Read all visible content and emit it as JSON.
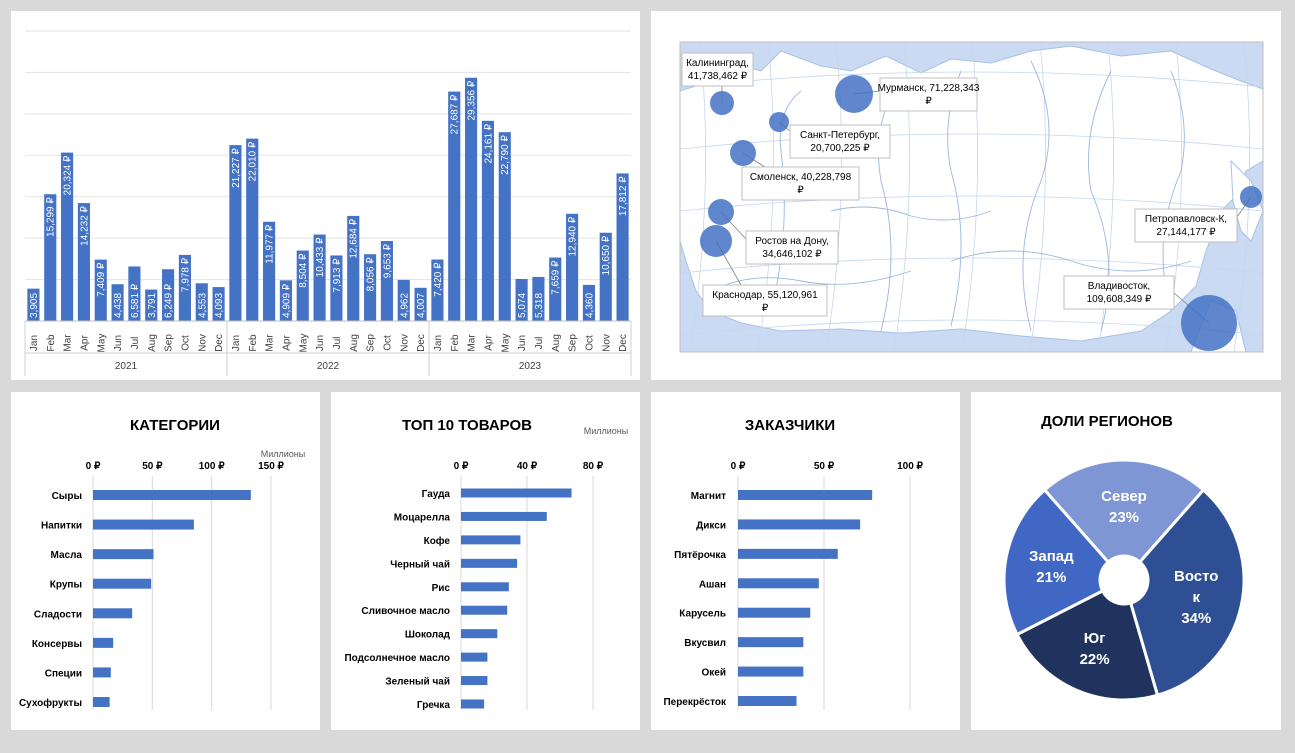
{
  "chart_data": [
    {
      "type": "bar",
      "title": "",
      "currency": "₽",
      "years": [
        "2021",
        "2022",
        "2023"
      ],
      "months": [
        "Jan",
        "Feb",
        "Mar",
        "Apr",
        "May",
        "Jun",
        "Jul",
        "Aug",
        "Sep",
        "Oct",
        "Nov",
        "Dec"
      ],
      "values": [
        3905,
        15299,
        20324,
        14232,
        7409,
        4438,
        6581,
        3791,
        6249,
        7978,
        4553,
        4093,
        21227,
        22010,
        11977,
        4909,
        8504,
        10433,
        7913,
        12684,
        8056,
        9653,
        4962,
        4007,
        7420,
        27687,
        29356,
        24161,
        22790,
        5074,
        5318,
        7659,
        12940,
        4360,
        10650,
        17812
      ],
      "labels": [
        "3,905",
        "15,299 ₽",
        "20,324 ₽",
        "14,232 ₽",
        "7,409 ₽",
        "4,438",
        "6,581 ₽",
        "3,791",
        "6,249 ₽",
        "7,978 ₽",
        "4,553",
        "4,093",
        "21,227 ₽",
        "22,010 ₽",
        "11,977 ₽",
        "4,909 ₽",
        "8,504 ₽",
        "10,433 ₽",
        "7,913 ₽",
        "12,684 ₽",
        "8,056 ₽",
        "9,653 ₽",
        "4,962",
        "4,007",
        "7,420 ₽",
        "27,687 ₽",
        "29,356 ₽",
        "24,161 ₽",
        "22,790 ₽",
        "5,074",
        "5,318",
        "7,659 ₽",
        "12,940 ₽",
        "4,360",
        "10,650 ₽",
        "17,812 ₽"
      ],
      "ylim": [
        0,
        35000
      ],
      "grid": true
    },
    {
      "type": "scatter",
      "subtype": "bubble-map",
      "points": [
        {
          "label": "Калининград, 41,738,462 ₽",
          "lines": [
            "Калининград,",
            "41,738,462 ₽"
          ],
          "value": 41738462
        },
        {
          "label": "Мурманск, 71,228,343 ₽",
          "lines": [
            "Мурманск, 71,228,343",
            "₽"
          ],
          "value": 71228343
        },
        {
          "label": "Санкт-Петербург, 20,700,225 ₽",
          "lines": [
            "Санкт-Петербург,",
            "20,700,225 ₽"
          ],
          "value": 20700225
        },
        {
          "label": "Смоленск, 40,228,798 ₽",
          "lines": [
            "Смоленск, 40,228,798",
            "₽"
          ],
          "value": 40228798
        },
        {
          "label": "Ростов на Дону, 34,646,102 ₽",
          "lines": [
            "Ростов на Дону,",
            "34,646,102 ₽"
          ],
          "value": 34646102
        },
        {
          "label": "Краснодар, 55,120,961 ₽",
          "lines": [
            "Краснодар, 55,120,961",
            "₽"
          ],
          "value": 55120961
        },
        {
          "label": "Петропавловск-К, 27,144,177 ₽",
          "lines": [
            "Петропавловск-К,",
            "27,144,177 ₽"
          ],
          "value": 27144177
        },
        {
          "label": "Владивосток, 109,608,349 ₽",
          "lines": [
            "Владивосток,",
            "109,608,349 ₽"
          ],
          "value": 109608349
        }
      ]
    },
    {
      "type": "bar",
      "orientation": "horizontal",
      "title": "КАТЕГОРИИ",
      "units_label": "Миллионы",
      "categories": [
        "Сыры",
        "Напитки",
        "Масла",
        "Крупы",
        "Сладости",
        "Консервы",
        "Специи",
        "Сухофрукты"
      ],
      "values": [
        133,
        85,
        51,
        49,
        33,
        17,
        15,
        14
      ],
      "xticks": [
        "0 ₽",
        "50 ₽",
        "100 ₽",
        "150 ₽"
      ],
      "xtick_values": [
        0,
        50,
        100,
        150
      ],
      "xlim": [
        0,
        150
      ],
      "grid": true
    },
    {
      "type": "bar",
      "orientation": "horizontal",
      "title": "ТОП 10 ТОВАРОВ",
      "units_label": "Миллионы",
      "categories": [
        "Гауда",
        "Моцарелла",
        "Кофе",
        "Черный чай",
        "Рис",
        "Сливочное масло",
        "Шоколад",
        "Подсолнечное масло",
        "Зеленый чай",
        "Гречка"
      ],
      "values": [
        67,
        52,
        36,
        34,
        29,
        28,
        22,
        16,
        16,
        14
      ],
      "xticks": [
        "0 ₽",
        "40 ₽",
        "80 ₽"
      ],
      "xtick_values": [
        0,
        40,
        80
      ],
      "xlim": [
        0,
        80
      ],
      "grid": true
    },
    {
      "type": "bar",
      "orientation": "horizontal",
      "title": "ЗАКАЗЧИКИ",
      "categories": [
        "Магнит",
        "Дикси",
        "Пятёрочка",
        "Ашан",
        "Карусель",
        "Вкусвил",
        "Окей",
        "Перекрёсток"
      ],
      "values": [
        78,
        71,
        58,
        47,
        42,
        38,
        38,
        34
      ],
      "xticks": [
        "0 ₽",
        "50 ₽",
        "100 ₽"
      ],
      "xtick_values": [
        0,
        50,
        100
      ],
      "xlim": [
        0,
        100
      ],
      "grid": true
    },
    {
      "type": "pie",
      "subtype": "doughnut",
      "title": "ДОЛИ РЕГИОНОВ",
      "slices": [
        {
          "name": "Север",
          "lines": [
            "Север",
            "23%"
          ],
          "value": 23,
          "color": "#7f96d4"
        },
        {
          "name": "Восток",
          "lines": [
            "Восто",
            "к",
            "34%"
          ],
          "value": 34,
          "color": "#2f4f94"
        },
        {
          "name": "Юг",
          "lines": [
            "Юг",
            "22%"
          ],
          "value": 22,
          "color": "#1f335e"
        },
        {
          "name": "Запад",
          "lines": [
            "Запад",
            "21%"
          ],
          "value": 21,
          "color": "#4067c4"
        }
      ]
    }
  ],
  "colors": {
    "bar": "#4472c4",
    "bubble": "#4472c4",
    "map_water": "#c9daf2",
    "map_land": "#ffffff",
    "grid": "#d9d9d9"
  }
}
